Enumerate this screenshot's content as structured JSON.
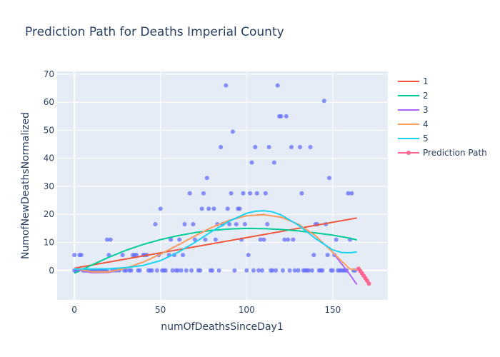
{
  "chart_data": {
    "type": "scatter",
    "title": "Prediction Path for Deaths Imperial County",
    "xlabel": "numOfDeathsSinceDay1",
    "ylabel": "NumofNewDeathsNormalized",
    "xlim": [
      -10,
      182
    ],
    "ylim": [
      -10.5,
      71
    ],
    "xticks": [
      0,
      50,
      100,
      150
    ],
    "yticks": [
      0,
      10,
      20,
      30,
      40,
      50,
      60,
      70
    ],
    "grid": true,
    "legend_position": "right",
    "colors": {
      "background": "#e5ecf6",
      "points": "#636efa",
      "1": "#ef553b",
      "2": "#00cc96",
      "3": "#ab63fa",
      "4": "#ffa15a",
      "5": "#19d3f3",
      "prediction": "#ff6692"
    },
    "scatter_points": [
      [
        0,
        0
      ],
      [
        0,
        5.5
      ],
      [
        1,
        0
      ],
      [
        2,
        0
      ],
      [
        3,
        5.5
      ],
      [
        4,
        5.5
      ],
      [
        5,
        0
      ],
      [
        6,
        0
      ],
      [
        7,
        0
      ],
      [
        8,
        0
      ],
      [
        9,
        0
      ],
      [
        10,
        0
      ],
      [
        11,
        0
      ],
      [
        12,
        0
      ],
      [
        13,
        0
      ],
      [
        14,
        0
      ],
      [
        15,
        0
      ],
      [
        16,
        0
      ],
      [
        17,
        0
      ],
      [
        18,
        0
      ],
      [
        19,
        0
      ],
      [
        19,
        11
      ],
      [
        20,
        5.5
      ],
      [
        21,
        11
      ],
      [
        22,
        0
      ],
      [
        24,
        0
      ],
      [
        26,
        0
      ],
      [
        28,
        5.5
      ],
      [
        29,
        0
      ],
      [
        30,
        0
      ],
      [
        32,
        0
      ],
      [
        33,
        0
      ],
      [
        34,
        5.5
      ],
      [
        35,
        5.5
      ],
      [
        36,
        5.5
      ],
      [
        37,
        0
      ],
      [
        38,
        0
      ],
      [
        40,
        5.5
      ],
      [
        41,
        5.5
      ],
      [
        42,
        5.5
      ],
      [
        43,
        0
      ],
      [
        44,
        0
      ],
      [
        45,
        0
      ],
      [
        47,
        16.5
      ],
      [
        48,
        0
      ],
      [
        49,
        5.5
      ],
      [
        50,
        22
      ],
      [
        51,
        0
      ],
      [
        52,
        0
      ],
      [
        53,
        0
      ],
      [
        55,
        5.5
      ],
      [
        56,
        11
      ],
      [
        57,
        0
      ],
      [
        58,
        5.5
      ],
      [
        59,
        0
      ],
      [
        60,
        0
      ],
      [
        61,
        11
      ],
      [
        62,
        0
      ],
      [
        63,
        5.5
      ],
      [
        64,
        16.5
      ],
      [
        65,
        0
      ],
      [
        67,
        27.5
      ],
      [
        68,
        0
      ],
      [
        69,
        16.5
      ],
      [
        70,
        11
      ],
      [
        72,
        0
      ],
      [
        73,
        0
      ],
      [
        74,
        22
      ],
      [
        75,
        27.5
      ],
      [
        76,
        11
      ],
      [
        77,
        33
      ],
      [
        78,
        22
      ],
      [
        79,
        0
      ],
      [
        80,
        0
      ],
      [
        81,
        22
      ],
      [
        82,
        11
      ],
      [
        83,
        16.5
      ],
      [
        84,
        0
      ],
      [
        85,
        44
      ],
      [
        86,
        16.5
      ],
      [
        88,
        66
      ],
      [
        89,
        22
      ],
      [
        90,
        16.5
      ],
      [
        91,
        27.5
      ],
      [
        92,
        49.5
      ],
      [
        93,
        0
      ],
      [
        94,
        16.5
      ],
      [
        95,
        22
      ],
      [
        96,
        22
      ],
      [
        97,
        11
      ],
      [
        98,
        27.5
      ],
      [
        99,
        16.5
      ],
      [
        100,
        0
      ],
      [
        101,
        5.5
      ],
      [
        102,
        27.5
      ],
      [
        103,
        38.5
      ],
      [
        104,
        0
      ],
      [
        105,
        44
      ],
      [
        106,
        27.5
      ],
      [
        107,
        0
      ],
      [
        108,
        11
      ],
      [
        109,
        0
      ],
      [
        110,
        11
      ],
      [
        111,
        27.5
      ],
      [
        112,
        16.5
      ],
      [
        113,
        44
      ],
      [
        114,
        0
      ],
      [
        115,
        0
      ],
      [
        116,
        38.5
      ],
      [
        117,
        0
      ],
      [
        118,
        66
      ],
      [
        119,
        55
      ],
      [
        120,
        55
      ],
      [
        121,
        0
      ],
      [
        122,
        11
      ],
      [
        123,
        55
      ],
      [
        124,
        11
      ],
      [
        125,
        0
      ],
      [
        126,
        44
      ],
      [
        127,
        11
      ],
      [
        128,
        0
      ],
      [
        130,
        0
      ],
      [
        131,
        44
      ],
      [
        132,
        27.5
      ],
      [
        133,
        0
      ],
      [
        134,
        0
      ],
      [
        135,
        0
      ],
      [
        136,
        0
      ],
      [
        137,
        44
      ],
      [
        138,
        0
      ],
      [
        139,
        5.5
      ],
      [
        140,
        16.5
      ],
      [
        141,
        16.5
      ],
      [
        142,
        0
      ],
      [
        143,
        0
      ],
      [
        144,
        0
      ],
      [
        145,
        60.5
      ],
      [
        146,
        16.5
      ],
      [
        147,
        5.5
      ],
      [
        148,
        33
      ],
      [
        149,
        0
      ],
      [
        150,
        0
      ],
      [
        151,
        5.5
      ],
      [
        152,
        11
      ],
      [
        153,
        0
      ],
      [
        154,
        0
      ],
      [
        155,
        0
      ],
      [
        156,
        0
      ],
      [
        157,
        0
      ],
      [
        158,
        0
      ],
      [
        159,
        27.5
      ],
      [
        160,
        11
      ],
      [
        161,
        27.5
      ],
      [
        162,
        0
      ],
      [
        163,
        0
      ]
    ],
    "series": [
      {
        "name": "1",
        "x": [
          0,
          164
        ],
        "y": [
          0.8,
          18.7
        ]
      },
      {
        "name": "2",
        "x": [
          0,
          10,
          20,
          30,
          40,
          50,
          60,
          70,
          80,
          90,
          100,
          110,
          120,
          130,
          140,
          150,
          160,
          164
        ],
        "y": [
          -1,
          1.9,
          4.7,
          7.2,
          9.3,
          11,
          12.4,
          13.5,
          14.3,
          14.8,
          15,
          14.9,
          14.6,
          14.1,
          13.4,
          12.6,
          11.5,
          10.9
        ]
      },
      {
        "name": "3",
        "x": [
          0,
          10,
          20,
          30,
          40,
          50,
          60,
          70,
          80,
          90,
          100,
          110,
          120,
          130,
          140,
          150,
          160,
          164
        ],
        "y": [
          0.5,
          -0.8,
          -0.7,
          0.8,
          3,
          5.8,
          9,
          12.3,
          15.4,
          17.9,
          19.5,
          19.9,
          19,
          16.5,
          12.4,
          6.5,
          -1.5,
          -5
        ]
      },
      {
        "name": "4",
        "x": [
          0,
          10,
          20,
          30,
          40,
          50,
          60,
          70,
          80,
          90,
          100,
          110,
          120,
          130,
          140,
          150,
          160,
          164
        ],
        "y": [
          0.8,
          -0.5,
          -0.5,
          0.8,
          3,
          5.8,
          9,
          12.3,
          15.4,
          17.9,
          19.5,
          19.9,
          19,
          16.5,
          12.4,
          6.5,
          0.5,
          0.2
        ]
      },
      {
        "name": "5",
        "x": [
          0,
          10,
          20,
          30,
          40,
          50,
          60,
          70,
          80,
          90,
          100,
          105,
          110,
          115,
          120,
          130,
          140,
          150,
          155,
          160,
          164
        ],
        "y": [
          0.5,
          0.5,
          0.6,
          1,
          1.8,
          3.5,
          6.4,
          10,
          14,
          17.6,
          20.4,
          21.1,
          21.3,
          20.9,
          19.8,
          16.2,
          11.4,
          7.3,
          6.4,
          6.3,
          6.6
        ]
      }
    ],
    "prediction_path": {
      "name": "Prediction Path",
      "x": [
        165,
        166,
        167,
        168,
        169,
        170,
        171
      ],
      "y": [
        0.6,
        -0.2,
        -1,
        -1.9,
        -2.8,
        -3.7,
        -4.7
      ]
    },
    "legend": [
      "1",
      "2",
      "3",
      "4",
      "5",
      "Prediction Path"
    ]
  }
}
